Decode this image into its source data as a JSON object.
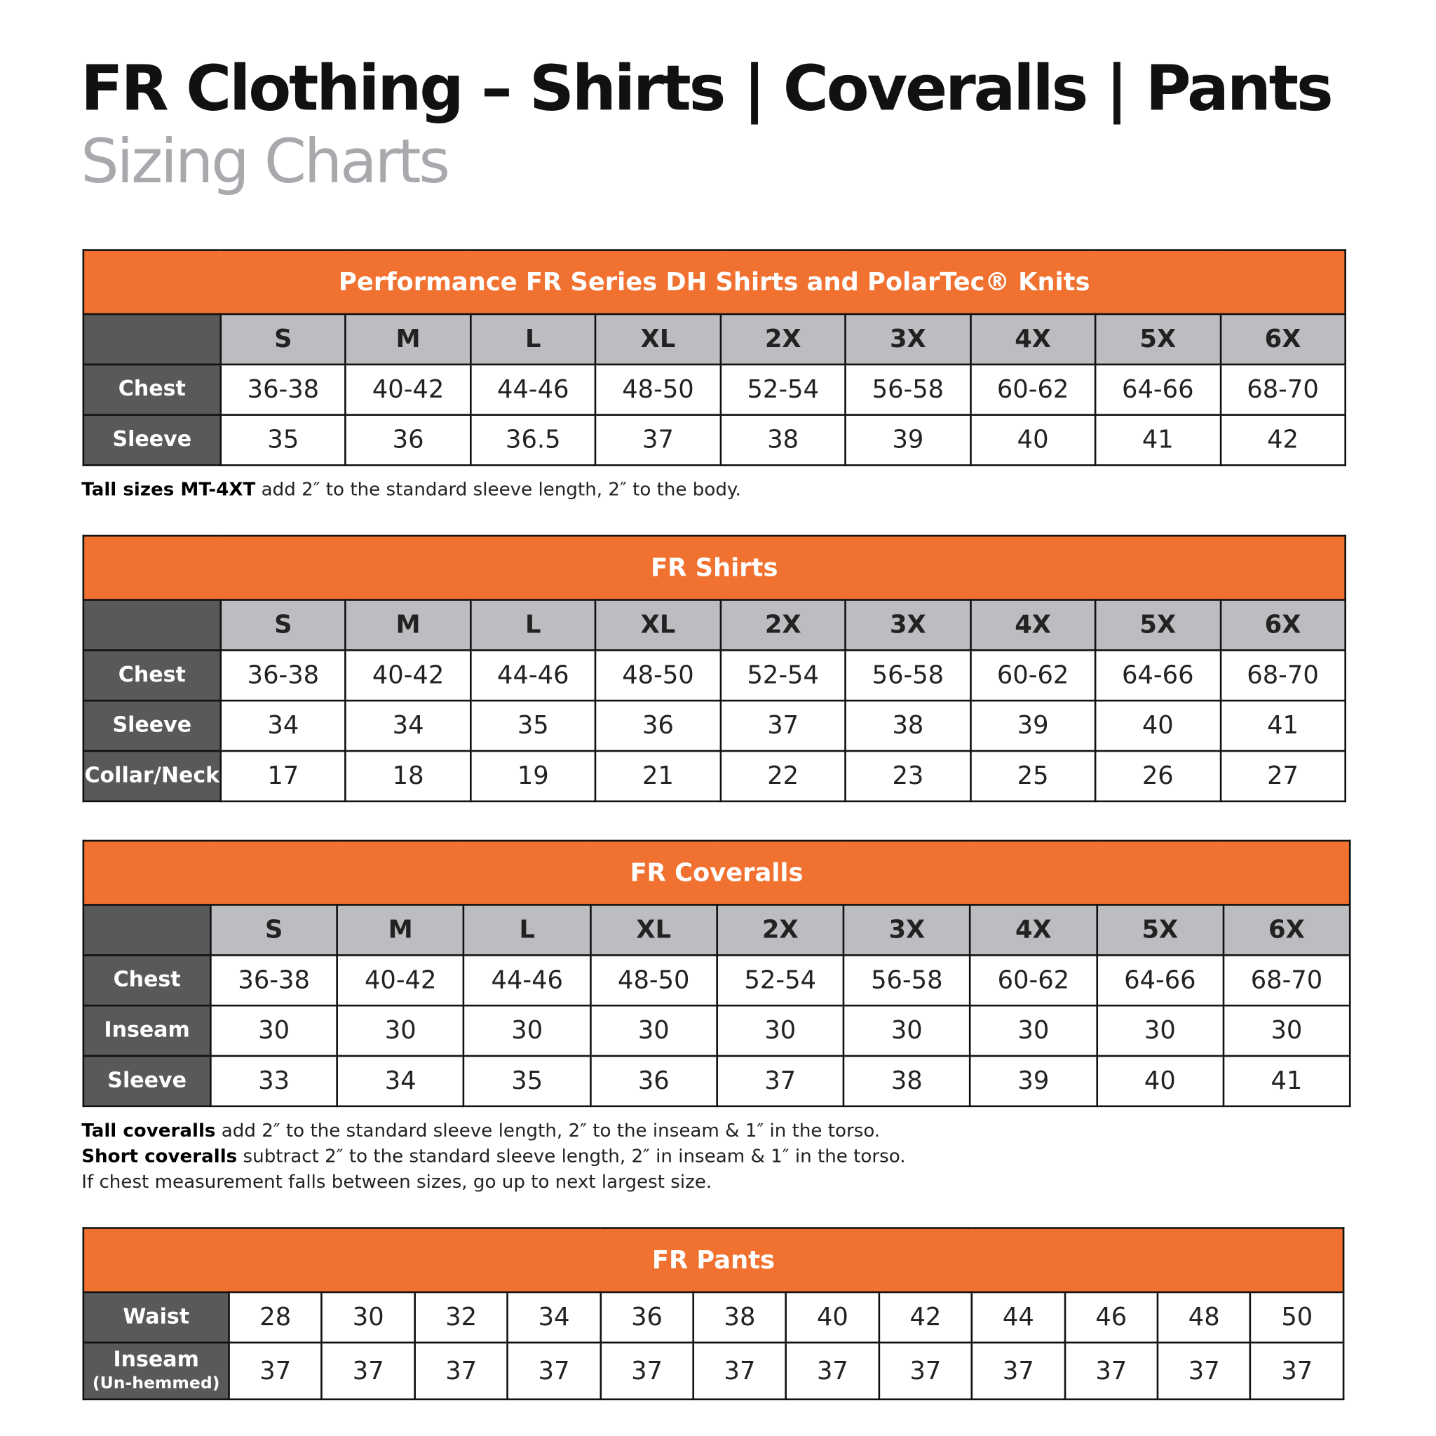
{
  "title": "FR Clothing – Shirts | Coveralls | Pants",
  "subtitle": "Sizing Charts",
  "colors": {
    "band": "#f07130",
    "row_label_bg": "#58595b",
    "size_header_bg": "#bcbdc0"
  },
  "tables": [
    {
      "title": "Performance FR Series DH Shirts and PolarTec® Knits",
      "sizes": [
        "S",
        "M",
        "L",
        "XL",
        "2X",
        "3X",
        "4X",
        "5X",
        "6X"
      ],
      "rows": [
        {
          "label": "Chest",
          "values": [
            "36-38",
            "40-42",
            "44-46",
            "48-50",
            "52-54",
            "56-58",
            "60-62",
            "64-66",
            "68-70"
          ]
        },
        {
          "label": "Sleeve",
          "values": [
            "35",
            "36",
            "36.5",
            "37",
            "38",
            "39",
            "40",
            "41",
            "42"
          ]
        }
      ],
      "notes": [
        {
          "bold": "Tall sizes MT-4XT",
          "text": " add 2″ to the standard sleeve length, 2″ to the body."
        }
      ]
    },
    {
      "title": "FR Shirts",
      "sizes": [
        "S",
        "M",
        "L",
        "XL",
        "2X",
        "3X",
        "4X",
        "5X",
        "6X"
      ],
      "rows": [
        {
          "label": "Chest",
          "values": [
            "36-38",
            "40-42",
            "44-46",
            "48-50",
            "52-54",
            "56-58",
            "60-62",
            "64-66",
            "68-70"
          ]
        },
        {
          "label": "Sleeve",
          "values": [
            "34",
            "34",
            "35",
            "36",
            "37",
            "38",
            "39",
            "40",
            "41"
          ]
        },
        {
          "label": "Collar/Neck",
          "values": [
            "17",
            "18",
            "19",
            "21",
            "22",
            "23",
            "25",
            "26",
            "27"
          ]
        }
      ]
    },
    {
      "title": "FR Coveralls",
      "sizes": [
        "S",
        "M",
        "L",
        "XL",
        "2X",
        "3X",
        "4X",
        "5X",
        "6X"
      ],
      "rows": [
        {
          "label": "Chest",
          "values": [
            "36-38",
            "40-42",
            "44-46",
            "48-50",
            "52-54",
            "56-58",
            "60-62",
            "64-66",
            "68-70"
          ]
        },
        {
          "label": "Inseam",
          "values": [
            "30",
            "30",
            "30",
            "30",
            "30",
            "30",
            "30",
            "30",
            "30"
          ]
        },
        {
          "label": "Sleeve",
          "values": [
            "33",
            "34",
            "35",
            "36",
            "37",
            "38",
            "39",
            "40",
            "41"
          ]
        }
      ],
      "notes": [
        {
          "bold": "Tall coveralls",
          "text": " add 2″ to the standard sleeve length, 2″ to the inseam & 1″ in the torso."
        },
        {
          "bold": "Short coveralls",
          "text": " subtract 2″ to the standard sleeve length, 2″  in inseam & 1″ in the torso."
        },
        {
          "bold": "",
          "text": "If chest measurement falls between sizes, go up to next largest size."
        }
      ]
    },
    {
      "title": "FR Pants",
      "rows": [
        {
          "label": "Waist",
          "values": [
            "28",
            "30",
            "32",
            "34",
            "36",
            "38",
            "40",
            "42",
            "44",
            "46",
            "48",
            "50"
          ]
        },
        {
          "label": "Inseam",
          "sublabel": "(Un-hemmed)",
          "values": [
            "37",
            "37",
            "37",
            "37",
            "37",
            "37",
            "37",
            "37",
            "37",
            "37",
            "37",
            "37"
          ]
        }
      ]
    }
  ]
}
